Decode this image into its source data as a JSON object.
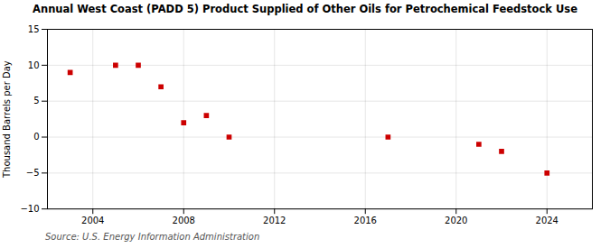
{
  "chart_data": {
    "type": "scatter",
    "title": "Annual West Coast (PADD 5) Product Supplied of Other Oils for Petrochemical Feedstock Use",
    "ylabel": "Thousand Barrels per Day",
    "annotations": [
      "Source: U.S. Energy Information Administration"
    ],
    "x": [
      2003,
      2005,
      2006,
      2007,
      2008,
      2009,
      2010,
      2017,
      2021,
      2022,
      2024
    ],
    "values": [
      9,
      10,
      10,
      7,
      2,
      3,
      0,
      0,
      -1,
      -2,
      -5
    ],
    "color": "#cc0000",
    "marker": "square",
    "xlim": [
      2002.0,
      2026.0
    ],
    "ylim": [
      -10,
      15
    ],
    "xticks": [
      2004,
      2008,
      2012,
      2016,
      2020,
      2024
    ],
    "yticks": [
      -10,
      -5,
      0,
      5,
      10,
      15
    ],
    "grid": true
  }
}
